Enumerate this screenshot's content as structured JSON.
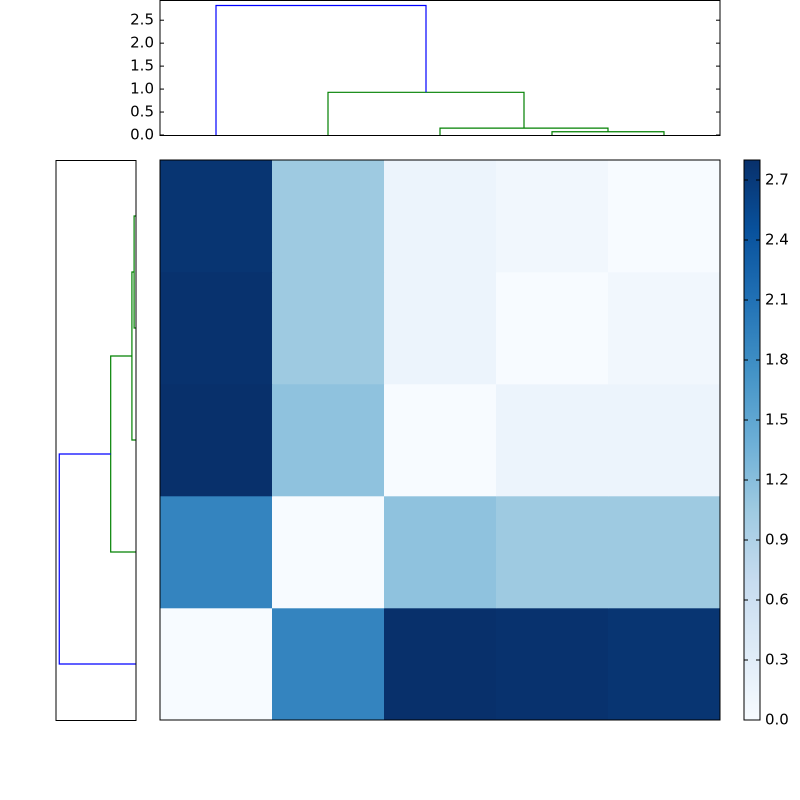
{
  "chart_data": [
    {
      "type": "dendrogram",
      "orientation": "top",
      "xlim": [
        0,
        50
      ],
      "ylim": [
        0,
        2.94
      ],
      "yticks": [
        {
          "value": 0,
          "label": "0.0"
        },
        0.5,
        {
          "value": 1,
          "label": "1.0"
        },
        1.5,
        {
          "value": 2,
          "label": "2.0"
        },
        2.5
      ],
      "links": [
        {
          "icoord": [
            35,
            35,
            45,
            45
          ],
          "dcoord": [
            0,
            0.07,
            0.07,
            0
          ],
          "color": "#008000"
        },
        {
          "icoord": [
            25,
            25,
            40,
            40
          ],
          "dcoord": [
            0,
            0.15,
            0.15,
            0.07
          ],
          "color": "#008000"
        },
        {
          "icoord": [
            15,
            15,
            32.5,
            32.5
          ],
          "dcoord": [
            0,
            0.93,
            0.93,
            0.15
          ],
          "color": "#008000"
        },
        {
          "icoord": [
            5,
            5,
            23.75,
            23.75
          ],
          "dcoord": [
            0,
            2.82,
            2.82,
            0.93
          ],
          "color": "#0000ff"
        }
      ]
    },
    {
      "type": "dendrogram",
      "orientation": "left",
      "xlim": [
        2.94,
        0
      ],
      "ylim": [
        0,
        50
      ],
      "links": [
        {
          "icoord": [
            35,
            35,
            45,
            45
          ],
          "dcoord": [
            0,
            0.07,
            0.07,
            0
          ],
          "color": "#008000"
        },
        {
          "icoord": [
            25,
            25,
            40,
            40
          ],
          "dcoord": [
            0,
            0.15,
            0.15,
            0.07
          ],
          "color": "#008000"
        },
        {
          "icoord": [
            15,
            15,
            32.5,
            32.5
          ],
          "dcoord": [
            0,
            0.93,
            0.93,
            0.15
          ],
          "color": "#008000"
        },
        {
          "icoord": [
            5,
            5,
            23.75,
            23.75
          ],
          "dcoord": [
            0,
            2.82,
            2.82,
            0.93
          ],
          "color": "#0000ff"
        }
      ]
    },
    {
      "type": "heatmap",
      "colormap": "Blues",
      "xlim": [
        0,
        50
      ],
      "ylim": [
        0,
        50
      ],
      "z": [
        [
          0,
          1.9,
          2.8,
          2.78,
          2.75
        ],
        [
          1.9,
          0,
          1.15,
          1.05,
          1.05
        ],
        [
          2.8,
          1.15,
          0,
          0.15,
          0.15
        ],
        [
          2.78,
          1.05,
          0.15,
          0,
          0.08
        ],
        [
          2.75,
          1.05,
          0.15,
          0.08,
          0
        ]
      ],
      "clim": [
        0,
        2.8
      ],
      "cticks": [
        {
          "value": 0,
          "label": "0.0"
        },
        0.3,
        0.6,
        0.9,
        1.2,
        1.5,
        1.8,
        2.1,
        2.4,
        2.7
      ]
    }
  ]
}
